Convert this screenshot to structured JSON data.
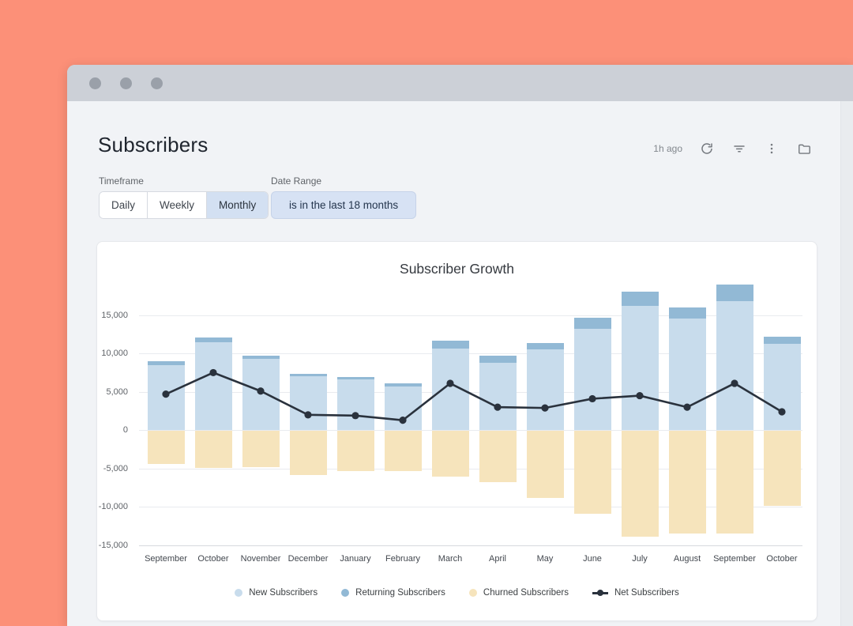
{
  "window": {
    "traffic_dot_count": 3
  },
  "header": {
    "title": "Subscribers"
  },
  "toolbar": {
    "last_updated": "1h ago",
    "icons": [
      "refresh",
      "filter",
      "more",
      "folder"
    ]
  },
  "controls": {
    "timeframe_label": "Timeframe",
    "timeframe_options": [
      "Daily",
      "Weekly",
      "Monthly"
    ],
    "timeframe_selected": "Monthly",
    "date_range_label": "Date Range",
    "date_range_value": "is in the last 18 months"
  },
  "chart_data": {
    "type": "bar",
    "subtype": "stacked-bars-with-line-overlay",
    "title": "Subscriber Growth",
    "categories": [
      "September",
      "October",
      "November",
      "December",
      "January",
      "February",
      "March",
      "April",
      "May",
      "June",
      "July",
      "August",
      "September",
      "October"
    ],
    "series": [
      {
        "name": "New Subscribers",
        "type": "bar",
        "color": "#c8dcec",
        "values": [
          8500,
          11500,
          9300,
          7000,
          6600,
          5700,
          10600,
          8800,
          10500,
          13200,
          16200,
          14500,
          16800,
          11200
        ]
      },
      {
        "name": "Returning Subscribers",
        "type": "bar",
        "color": "#92b9d5",
        "values": [
          450,
          600,
          400,
          350,
          300,
          400,
          1100,
          900,
          900,
          1400,
          1800,
          1500,
          2200,
          1000
        ]
      },
      {
        "name": "Churned Subscribers",
        "type": "bar",
        "color": "#f6e4bc",
        "values": [
          -4300,
          -4800,
          -4700,
          -5700,
          -5200,
          -5200,
          -5900,
          -6700,
          -8700,
          -10800,
          -13800,
          -13400,
          -13400,
          -9800
        ]
      },
      {
        "name": "Net Subscribers",
        "type": "line",
        "color": "#2a323d",
        "values": [
          4700,
          7500,
          5100,
          2000,
          1900,
          1300,
          6100,
          3000,
          2900,
          4100,
          4500,
          3000,
          6100,
          2400
        ]
      }
    ],
    "ylim": [
      -15000,
      20000
    ],
    "ytick_step": 5000,
    "ytick_max_label": 15000,
    "grid": true,
    "legend_position": "bottom"
  },
  "colors": {
    "frame": "#fc9078",
    "titlebar": "#ccd0d7",
    "window_bg": "#f1f3f6",
    "accent_selected": "#d3e0f2",
    "pill_bg": "#d7e2f4"
  }
}
